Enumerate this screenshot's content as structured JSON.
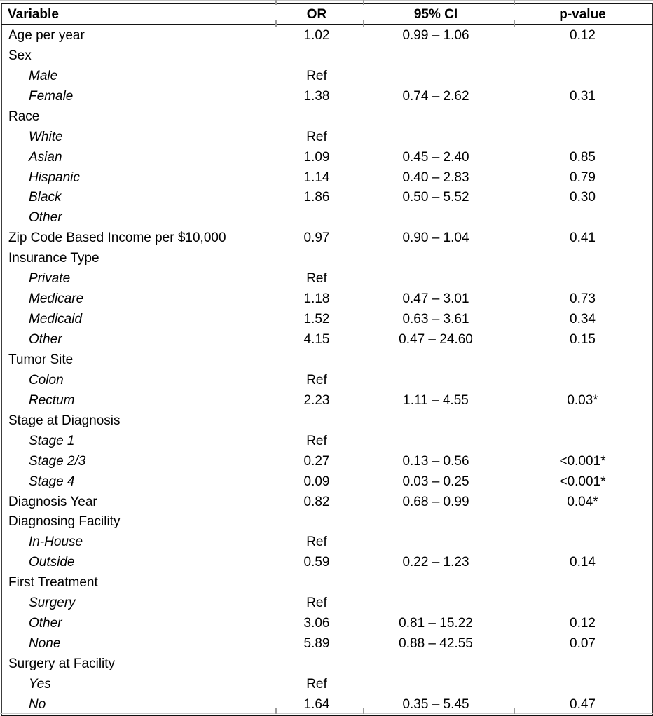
{
  "table": {
    "columns": [
      "Variable",
      "OR",
      "95% CI",
      "p-value"
    ],
    "rows": [
      {
        "variable": "Age per year",
        "indent": false,
        "or": "1.02",
        "ci": "0.99 – 1.06",
        "p": "0.12"
      },
      {
        "variable": "Sex",
        "indent": false,
        "or": "",
        "ci": "",
        "p": ""
      },
      {
        "variable": "Male",
        "indent": true,
        "or": "Ref",
        "ci": "",
        "p": ""
      },
      {
        "variable": "Female",
        "indent": true,
        "or": "1.38",
        "ci": "0.74 – 2.62",
        "p": "0.31"
      },
      {
        "variable": "Race",
        "indent": false,
        "or": "",
        "ci": "",
        "p": ""
      },
      {
        "variable": "White",
        "indent": true,
        "or": "Ref",
        "ci": "",
        "p": ""
      },
      {
        "variable": "Asian",
        "indent": true,
        "or": "1.09",
        "ci": "0.45 – 2.40",
        "p": "0.85"
      },
      {
        "variable": "Hispanic",
        "indent": true,
        "or": "1.14",
        "ci": "0.40 – 2.83",
        "p": "0.79"
      },
      {
        "variable": "Black",
        "indent": true,
        "or": "1.86",
        "ci": "0.50 – 5.52",
        "p": "0.30"
      },
      {
        "variable": "Other",
        "indent": true,
        "or": "",
        "ci": "",
        "p": ""
      },
      {
        "variable": "Zip Code Based Income per $10,000",
        "indent": false,
        "or": "0.97",
        "ci": "0.90 – 1.04",
        "p": "0.41"
      },
      {
        "variable": "Insurance Type",
        "indent": false,
        "or": "",
        "ci": "",
        "p": ""
      },
      {
        "variable": "Private",
        "indent": true,
        "or": "Ref",
        "ci": "",
        "p": ""
      },
      {
        "variable": "Medicare",
        "indent": true,
        "or": "1.18",
        "ci": "0.47 – 3.01",
        "p": "0.73"
      },
      {
        "variable": "Medicaid",
        "indent": true,
        "or": "1.52",
        "ci": "0.63 – 3.61",
        "p": "0.34"
      },
      {
        "variable": "Other",
        "indent": true,
        "or": "4.15",
        "ci": "0.47 – 24.60",
        "p": "0.15"
      },
      {
        "variable": "Tumor Site",
        "indent": false,
        "or": "",
        "ci": "",
        "p": ""
      },
      {
        "variable": "Colon",
        "indent": true,
        "or": "Ref",
        "ci": "",
        "p": ""
      },
      {
        "variable": "Rectum",
        "indent": true,
        "or": "2.23",
        "ci": "1.11 – 4.55",
        "p": "0.03*"
      },
      {
        "variable": "Stage at Diagnosis",
        "indent": false,
        "or": "",
        "ci": "",
        "p": ""
      },
      {
        "variable": "Stage 1",
        "indent": true,
        "or": "Ref",
        "ci": "",
        "p": ""
      },
      {
        "variable": "Stage 2/3",
        "indent": true,
        "or": "0.27",
        "ci": "0.13 – 0.56",
        "p": "<0.001*"
      },
      {
        "variable": "Stage 4",
        "indent": true,
        "or": "0.09",
        "ci": "0.03 – 0.25",
        "p": "<0.001*"
      },
      {
        "variable": "Diagnosis Year",
        "indent": false,
        "or": "0.82",
        "ci": "0.68 – 0.99",
        "p": "0.04*"
      },
      {
        "variable": "Diagnosing Facility",
        "indent": false,
        "or": "",
        "ci": "",
        "p": ""
      },
      {
        "variable": "In-House",
        "indent": true,
        "or": "Ref",
        "ci": "",
        "p": ""
      },
      {
        "variable": "Outside",
        "indent": true,
        "or": "0.59",
        "ci": "0.22 – 1.23",
        "p": "0.14"
      },
      {
        "variable": "First Treatment",
        "indent": false,
        "or": "",
        "ci": "",
        "p": ""
      },
      {
        "variable": "Surgery",
        "indent": true,
        "or": "Ref",
        "ci": "",
        "p": ""
      },
      {
        "variable": "Other",
        "indent": true,
        "or": "3.06",
        "ci": "0.81 – 15.22",
        "p": "0.12"
      },
      {
        "variable": "None",
        "indent": true,
        "or": "5.89",
        "ci": "0.88 – 42.55",
        "p": "0.07"
      },
      {
        "variable": "Surgery at Facility",
        "indent": false,
        "or": "",
        "ci": "",
        "p": ""
      },
      {
        "variable": "Yes",
        "indent": true,
        "or": "Ref",
        "ci": "",
        "p": ""
      },
      {
        "variable": "No",
        "indent": true,
        "or": "1.64",
        "ci": "0.35 – 5.45",
        "p": "0.47"
      }
    ]
  }
}
